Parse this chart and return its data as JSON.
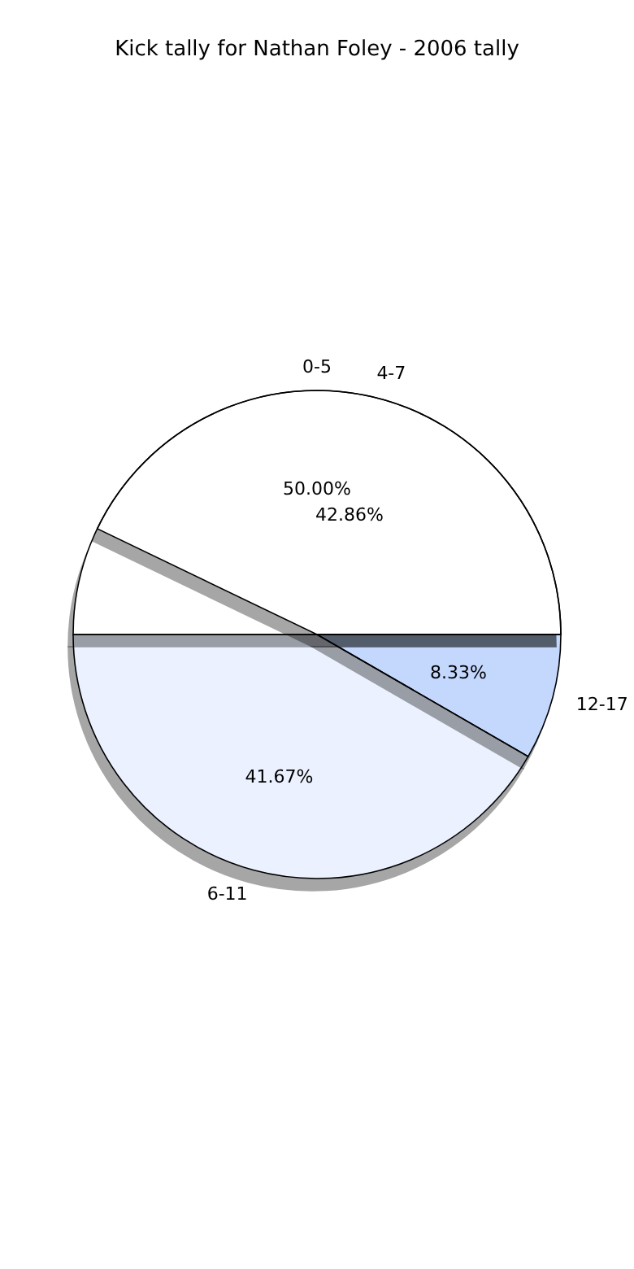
{
  "chart_data": [
    {
      "type": "pie",
      "title": "Kick tally for Nathan Foley - 2006 tally",
      "categories": [
        "0-5",
        "6-11",
        "12-17"
      ],
      "values": [
        50.0,
        41.67,
        8.33
      ],
      "value_labels": [
        "50.00%",
        "41.67%",
        "8.33%"
      ],
      "colors": [
        "#ffffff",
        "#ebf1fe",
        "#c4d8fe"
      ]
    },
    {
      "type": "pie",
      "categories": [
        "4-7"
      ],
      "values": [
        42.86
      ],
      "value_labels": [
        "42.86%"
      ],
      "colors": [
        "#ffffff"
      ]
    }
  ]
}
